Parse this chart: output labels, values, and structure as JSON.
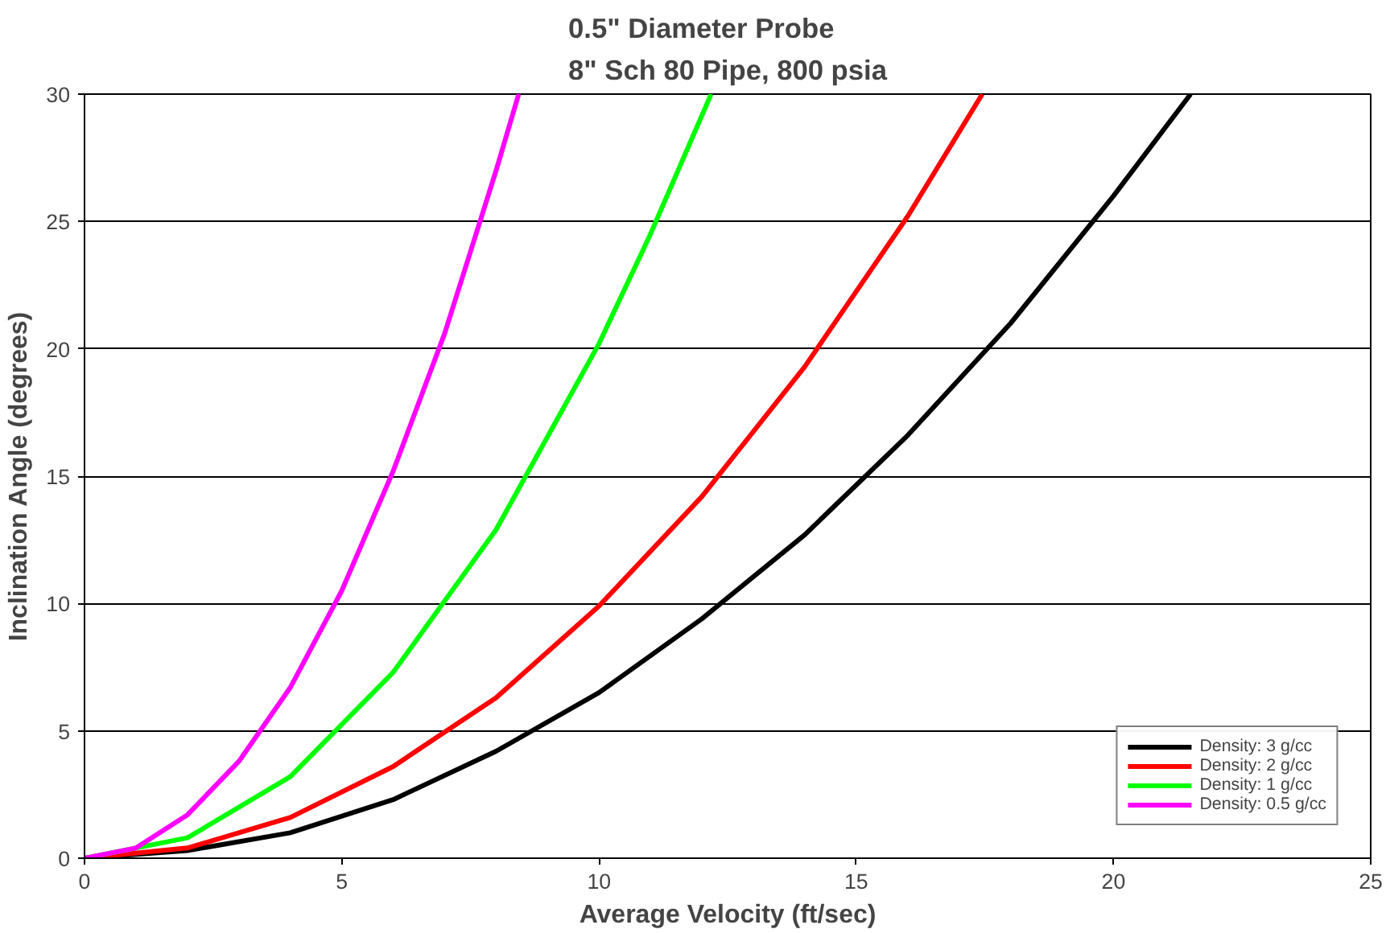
{
  "chart_data": {
    "type": "line",
    "title": "0.5\" Diameter Probe\n8\" Sch 80 Pipe, 800 psia",
    "xlabel": "Average Velocity (ft/sec)",
    "ylabel": "Inclination Angle (degrees)",
    "xlim": [
      0,
      25
    ],
    "xticks": [
      0,
      5,
      10,
      15,
      20,
      25
    ],
    "ylim": [
      0,
      30
    ],
    "yticks": [
      0,
      5,
      10,
      15,
      20,
      25,
      30
    ],
    "grid": "y",
    "legend": "bottom right",
    "line_style": "solid",
    "series": [
      {
        "name": "Density: 3 g/cc",
        "color": "#000000",
        "x": [
          0,
          2,
          4,
          6,
          8,
          10,
          12,
          14,
          16,
          18,
          20,
          21.5
        ],
        "values": [
          0,
          0.3,
          1.0,
          2.3,
          4.2,
          6.5,
          9.4,
          12.7,
          16.6,
          21.0,
          26.0,
          30
        ]
      },
      {
        "name": "Density: 2 g/cc",
        "color": "#ff0000",
        "x": [
          0,
          2,
          4,
          6,
          8,
          10,
          12,
          14,
          16,
          17.45
        ],
        "values": [
          0,
          0.4,
          1.6,
          3.6,
          6.3,
          9.9,
          14.2,
          19.3,
          25.2,
          30
        ]
      },
      {
        "name": "Density: 1 g/cc",
        "color": "#00ff00",
        "x": [
          0,
          2,
          4,
          6,
          8,
          10,
          11,
          12.18
        ],
        "values": [
          0,
          0.8,
          3.2,
          7.3,
          12.9,
          20.2,
          24.5,
          30
        ]
      },
      {
        "name": "Density: 0.5 g/cc",
        "color": "#ff00ff",
        "x": [
          0,
          1,
          2,
          3,
          4,
          5,
          6,
          7,
          8,
          8.44
        ],
        "values": [
          0,
          0.4,
          1.7,
          3.8,
          6.7,
          10.5,
          15.2,
          20.6,
          27.0,
          30
        ]
      }
    ]
  }
}
